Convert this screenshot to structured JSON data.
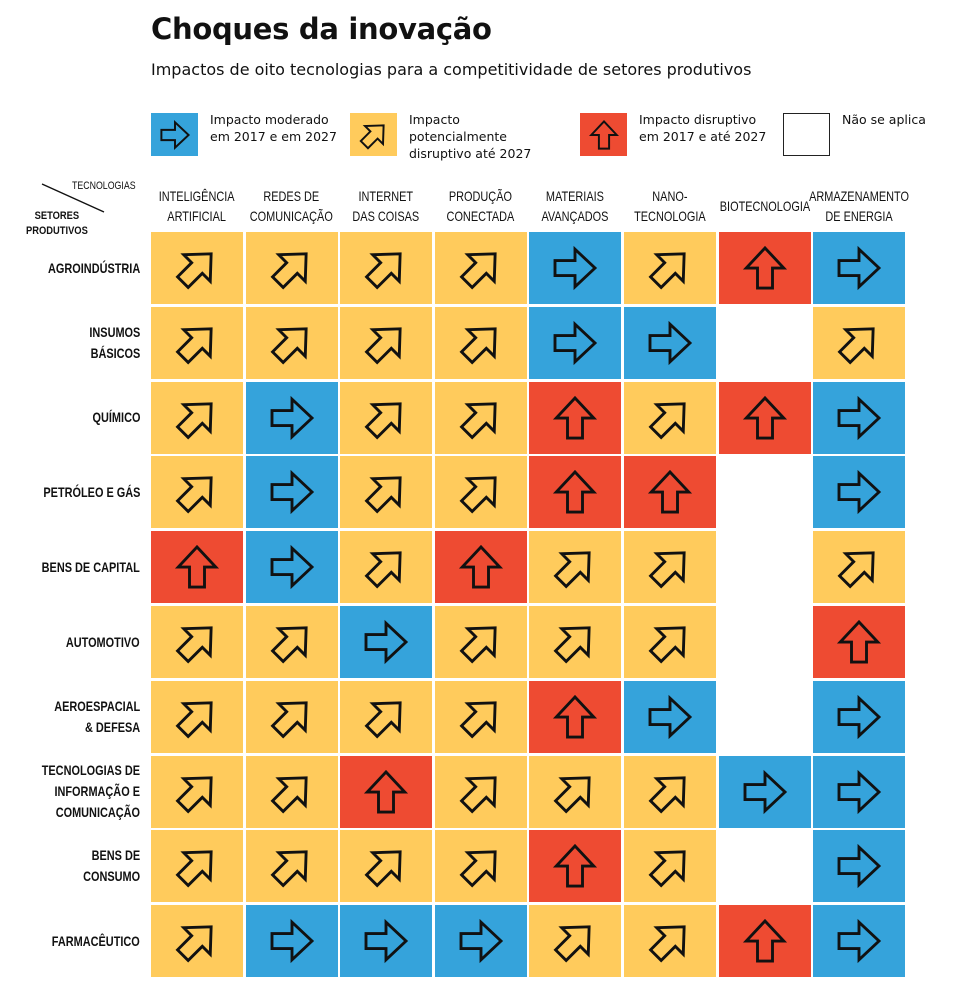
{
  "title": "Choques da inovação",
  "subtitle": "Impactos de oito tecnologias para a competitividade de setores produtivos",
  "colors": {
    "B": "#35A3DB",
    "Y": "#FFCB5C",
    "R": "#EE4B32",
    "N": "#FFFFFF"
  },
  "legend": [
    {
      "code": "B",
      "icon": "arrow-right-icon",
      "label": "Impacto moderado\nem 2017 e em 2027"
    },
    {
      "code": "Y",
      "icon": "arrow-diagonal-icon",
      "label": "Impacto potencialmente\ndisruptivo até 2027"
    },
    {
      "code": "R",
      "icon": "arrow-up-icon",
      "label": "Impacto disruptivo\nem 2017 e até 2027"
    },
    {
      "code": "N",
      "icon": "",
      "label": "Não se aplica"
    }
  ],
  "corner": {
    "columns_label": "TECNOLOGIAS",
    "rows_label": "SETORES\nPRODUTIVOS"
  },
  "chart_data": {
    "type": "heatmap",
    "columns": [
      "INTELIGÊNCIA\nARTIFICIAL",
      "REDES DE\nCOMUNICAÇÃO",
      "INTERNET\nDAS COISAS",
      "PRODUÇÃO\nCONECTADA",
      "MATERIAIS\nAVANÇADOS",
      "NANO-\nTECNOLOGIA",
      "BIOTECNOLOGIA",
      "ARMAZENAMENTO\nDE ENERGIA"
    ],
    "rows": [
      "AGROINDÚSTRIA",
      "INSUMOS\nBÁSICOS",
      "QUÍMICO",
      "PETRÓLEO E GÁS",
      "BENS DE CAPITAL",
      "AUTOMOTIVO",
      "AEROESPACIAL\n& DEFESA",
      "TECNOLOGIAS DE\nINFORMAÇÃO E\nCOMUNICAÇÃO",
      "BENS DE\nCONSUMO",
      "FARMACÊUTICO"
    ],
    "legend_codes": {
      "B": "Impacto moderado em 2017 e em 2027",
      "Y": "Impacto potencialmente disruptivo até 2027",
      "R": "Impacto disruptivo em 2017 e até 2027",
      "N": "Não se aplica"
    },
    "values": [
      [
        "Y",
        "Y",
        "Y",
        "Y",
        "B",
        "Y",
        "R",
        "B"
      ],
      [
        "Y",
        "Y",
        "Y",
        "Y",
        "B",
        "B",
        "N",
        "Y"
      ],
      [
        "Y",
        "B",
        "Y",
        "Y",
        "R",
        "Y",
        "R",
        "B"
      ],
      [
        "Y",
        "B",
        "Y",
        "Y",
        "R",
        "R",
        "N",
        "B"
      ],
      [
        "R",
        "B",
        "Y",
        "R",
        "Y",
        "Y",
        "N",
        "Y"
      ],
      [
        "Y",
        "Y",
        "B",
        "Y",
        "Y",
        "Y",
        "N",
        "R"
      ],
      [
        "Y",
        "Y",
        "Y",
        "Y",
        "R",
        "B",
        "N",
        "B"
      ],
      [
        "Y",
        "Y",
        "R",
        "Y",
        "Y",
        "Y",
        "B",
        "B"
      ],
      [
        "Y",
        "Y",
        "Y",
        "Y",
        "R",
        "Y",
        "N",
        "B"
      ],
      [
        "Y",
        "B",
        "B",
        "B",
        "Y",
        "Y",
        "R",
        "B"
      ]
    ]
  }
}
